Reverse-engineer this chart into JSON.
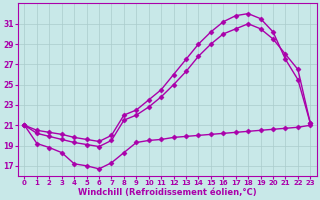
{
  "xlabel": "Windchill (Refroidissement éolien,°C)",
  "bg_color": "#c8e8e8",
  "line_color": "#aa00aa",
  "grid_color": "#aacccc",
  "xlim": [
    -0.5,
    23.5
  ],
  "ylim": [
    16.0,
    33.0
  ],
  "xticks": [
    0,
    1,
    2,
    3,
    4,
    5,
    6,
    7,
    8,
    9,
    10,
    11,
    12,
    13,
    14,
    15,
    16,
    17,
    18,
    19,
    20,
    21,
    22,
    23
  ],
  "yticks": [
    17,
    19,
    21,
    23,
    25,
    27,
    29,
    31
  ],
  "line1_x": [
    0,
    1,
    2,
    3,
    4,
    5,
    6,
    7,
    8,
    9,
    10,
    11,
    12,
    13,
    14,
    15,
    16,
    17,
    18,
    19,
    20,
    21,
    22,
    23
  ],
  "line1_y": [
    21,
    19.2,
    18.8,
    18.3,
    17.2,
    17.0,
    16.7,
    17.3,
    18.3,
    19.3,
    19.5,
    19.6,
    19.8,
    19.9,
    20.0,
    20.1,
    20.2,
    20.3,
    20.4,
    20.5,
    20.6,
    20.7,
    20.8,
    21.0
  ],
  "line2_x": [
    0,
    1,
    2,
    3,
    4,
    5,
    6,
    7,
    8,
    9,
    10,
    11,
    12,
    13,
    14,
    15,
    16,
    17,
    18,
    19,
    20,
    21,
    22,
    23
  ],
  "line2_y": [
    21.0,
    20.5,
    20.3,
    20.1,
    19.8,
    19.6,
    19.4,
    20.0,
    22.0,
    22.5,
    23.5,
    24.5,
    26.0,
    27.5,
    29.0,
    30.2,
    31.2,
    31.8,
    32.0,
    31.5,
    30.2,
    27.5,
    25.5,
    21.2
  ],
  "line3_x": [
    0,
    1,
    2,
    3,
    4,
    5,
    6,
    7,
    8,
    9,
    10,
    11,
    12,
    13,
    14,
    15,
    16,
    17,
    18,
    19,
    20,
    21,
    22,
    23
  ],
  "line3_y": [
    21.0,
    20.2,
    19.9,
    19.6,
    19.3,
    19.1,
    18.9,
    19.5,
    21.5,
    22.0,
    22.8,
    23.8,
    25.0,
    26.3,
    27.8,
    29.0,
    30.0,
    30.5,
    31.0,
    30.5,
    29.5,
    28.0,
    26.5,
    21.2
  ],
  "marker": "D",
  "markersize": 2.5,
  "linewidth": 1.0
}
